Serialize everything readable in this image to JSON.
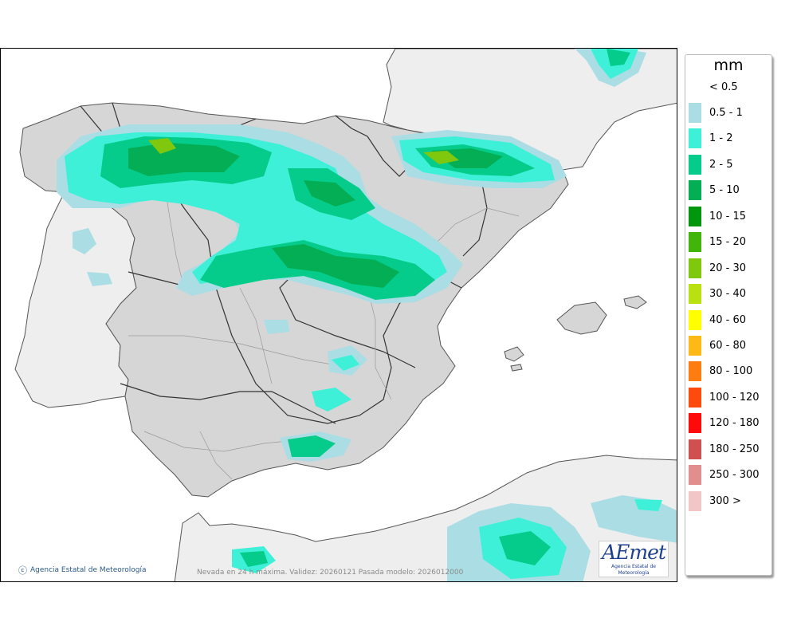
{
  "map": {
    "credit": "Agencia Estatal de Meteorología",
    "validity": "Nevada en 24 h máxima. Validez: 20260121 Pasada modelo: 2026012000",
    "logo_text": "AEmet",
    "logo_subtitle": "Agencia Estatal de Meteorología",
    "colors": {
      "sea": "#ffffff",
      "land": "#d6d6d6",
      "foreign_land": "#eeeeee",
      "borders": "#333333"
    }
  },
  "legend": {
    "unit": "mm",
    "items": [
      {
        "label": "< 0.5",
        "color": ""
      },
      {
        "label": "0.5 - 1",
        "color": "#aadde4"
      },
      {
        "label": "1 - 2",
        "color": "#3ff0d8"
      },
      {
        "label": "2 - 5",
        "color": "#05cc8a"
      },
      {
        "label": "5 - 10",
        "color": "#03ae54"
      },
      {
        "label": "10 - 15",
        "color": "#02960e"
      },
      {
        "label": "15 - 20",
        "color": "#42b50b"
      },
      {
        "label": "20 - 30",
        "color": "#7fc80e"
      },
      {
        "label": "30 - 40",
        "color": "#b9e010"
      },
      {
        "label": "40 - 60",
        "color": "#ffff00"
      },
      {
        "label": "60 - 80",
        "color": "#ffb916"
      },
      {
        "label": "80 - 100",
        "color": "#ff7c10"
      },
      {
        "label": "100 - 120",
        "color": "#ff4a0e"
      },
      {
        "label": "120 - 180",
        "color": "#ff0a0a"
      },
      {
        "label": "180 - 250",
        "color": "#ce5050"
      },
      {
        "label": "250 - 300",
        "color": "#e08e8e"
      },
      {
        "label": "300 >",
        "color": "#f2c6c6"
      }
    ]
  }
}
